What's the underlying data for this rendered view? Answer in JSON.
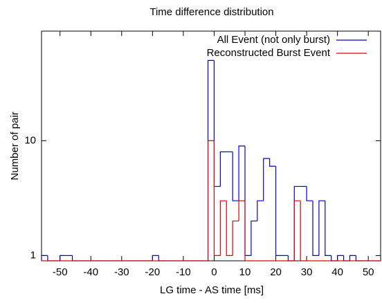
{
  "chart_data": {
    "type": "histogram",
    "title": "Time difference distribution",
    "x_label": "LG time - AS time [ms]",
    "y_label": "Number of pair",
    "bins": [
      -56,
      -54,
      -52,
      -50,
      -48,
      -46,
      -44,
      -42,
      -40,
      -38,
      -36,
      -34,
      -32,
      -30,
      -28,
      -26,
      -24,
      -22,
      -20,
      -18,
      -16,
      -14,
      -12,
      -10,
      -8,
      -6,
      -4,
      -2,
      0,
      2,
      4,
      6,
      8,
      10,
      12,
      14,
      16,
      18,
      20,
      22,
      24,
      26,
      28,
      30,
      32,
      34,
      36,
      38,
      40,
      42,
      44,
      46,
      48,
      50,
      52,
      54
    ],
    "series": [
      {
        "name": "All Event (not only burst)",
        "color": "#0000cc",
        "values": [
          1,
          0,
          0,
          1,
          1,
          0,
          0,
          0,
          0,
          0,
          0,
          0,
          0,
          0,
          0,
          0,
          0,
          0,
          1,
          0,
          0,
          0,
          0,
          0,
          0,
          0,
          0,
          50,
          4,
          8,
          8,
          3,
          9,
          1,
          2,
          3,
          7,
          6,
          1,
          1,
          0,
          4,
          4,
          3,
          1,
          3,
          1,
          0,
          1,
          0,
          1,
          0,
          0,
          0,
          0
        ]
      },
      {
        "name": "Reconstructed Burst Event",
        "color": "#dd0000",
        "values": [
          0,
          0,
          0,
          0,
          0,
          0,
          0,
          0,
          0,
          0,
          0,
          0,
          0,
          0,
          0,
          0,
          0,
          0,
          0,
          0,
          0,
          0,
          0,
          0,
          0,
          0,
          0,
          10,
          1,
          3,
          1,
          2,
          3,
          0,
          0,
          0,
          0,
          0,
          0,
          0,
          0,
          3,
          0,
          0,
          0,
          0,
          0,
          0,
          0,
          0,
          0,
          0,
          0,
          0,
          0
        ]
      }
    ],
    "xlim": [
      -56,
      54
    ],
    "xticks": [
      -50,
      -40,
      -30,
      -20,
      -10,
      0,
      10,
      20,
      30,
      40,
      50
    ],
    "ylim": [
      0.9,
      90
    ],
    "yticks": [
      1,
      10
    ],
    "log_y": true,
    "legend": "top-right"
  }
}
